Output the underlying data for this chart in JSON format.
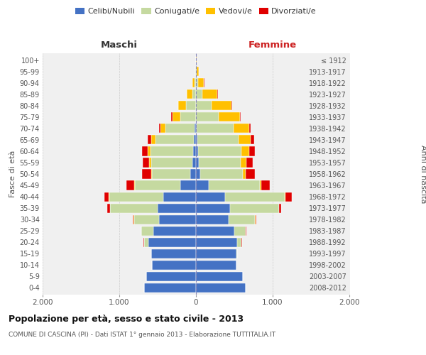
{
  "age_groups": [
    "100+",
    "95-99",
    "90-94",
    "85-89",
    "80-84",
    "75-79",
    "70-74",
    "65-69",
    "60-64",
    "55-59",
    "50-54",
    "45-49",
    "40-44",
    "35-39",
    "30-34",
    "25-29",
    "20-24",
    "15-19",
    "10-14",
    "5-9",
    "0-4"
  ],
  "birth_years": [
    "≤ 1912",
    "1913-1917",
    "1918-1922",
    "1923-1927",
    "1928-1932",
    "1933-1937",
    "1938-1942",
    "1943-1947",
    "1948-1952",
    "1953-1957",
    "1958-1962",
    "1963-1967",
    "1968-1972",
    "1973-1977",
    "1978-1982",
    "1983-1987",
    "1988-1992",
    "1993-1997",
    "1998-2002",
    "2003-2007",
    "2008-2012"
  ],
  "male_celibe": [
    0,
    0,
    0,
    0,
    0,
    0,
    20,
    30,
    40,
    50,
    70,
    200,
    430,
    500,
    480,
    560,
    620,
    580,
    570,
    650,
    680
  ],
  "male_coniugato": [
    0,
    5,
    20,
    50,
    130,
    200,
    380,
    500,
    550,
    530,
    500,
    600,
    700,
    620,
    330,
    150,
    60,
    5,
    0,
    0,
    0
  ],
  "male_vedovo": [
    0,
    5,
    30,
    70,
    100,
    110,
    60,
    50,
    40,
    30,
    15,
    10,
    5,
    5,
    5,
    0,
    0,
    0,
    0,
    0,
    0
  ],
  "male_divorziato": [
    0,
    0,
    0,
    0,
    5,
    10,
    20,
    50,
    70,
    80,
    120,
    100,
    60,
    30,
    10,
    5,
    5,
    0,
    0,
    0,
    0
  ],
  "female_celibe": [
    0,
    0,
    0,
    0,
    0,
    0,
    10,
    20,
    25,
    35,
    60,
    170,
    380,
    440,
    430,
    500,
    540,
    530,
    530,
    610,
    650
  ],
  "female_coniugata": [
    0,
    5,
    25,
    80,
    200,
    300,
    480,
    540,
    570,
    550,
    550,
    660,
    780,
    640,
    340,
    150,
    55,
    5,
    0,
    0,
    0
  ],
  "female_vedova": [
    5,
    30,
    80,
    200,
    260,
    270,
    200,
    150,
    100,
    70,
    40,
    20,
    10,
    5,
    5,
    0,
    0,
    0,
    0,
    0,
    0
  ],
  "female_divorziata": [
    0,
    0,
    5,
    5,
    10,
    15,
    25,
    50,
    70,
    90,
    120,
    110,
    80,
    30,
    10,
    5,
    5,
    0,
    0,
    0,
    0
  ],
  "colors": {
    "celibe": "#4472c4",
    "coniugato": "#c5d9a0",
    "vedovo": "#ffc000",
    "divorziato": "#e00000"
  },
  "xlim": 2000,
  "title": "Popolazione per età, sesso e stato civile - 2013",
  "subtitle": "COMUNE DI CASCINA (PI) - Dati ISTAT 1° gennaio 2013 - Elaborazione TUTTITALIA.IT",
  "ylabel_left": "Fasce di età",
  "ylabel_right": "Anni di nascita",
  "xlabel_left": "Maschi",
  "xlabel_right": "Femmine",
  "legend_labels": [
    "Celibi/Nubili",
    "Coniugati/e",
    "Vedovi/e",
    "Divorziati/e"
  ],
  "xtick_labels": [
    "2.000",
    "1.000",
    "0",
    "1.000",
    "2.000"
  ],
  "xtick_values": [
    -2000,
    -1000,
    0,
    1000,
    2000
  ],
  "background_color": "#ffffff",
  "plot_bg_color": "#f0f0f0"
}
